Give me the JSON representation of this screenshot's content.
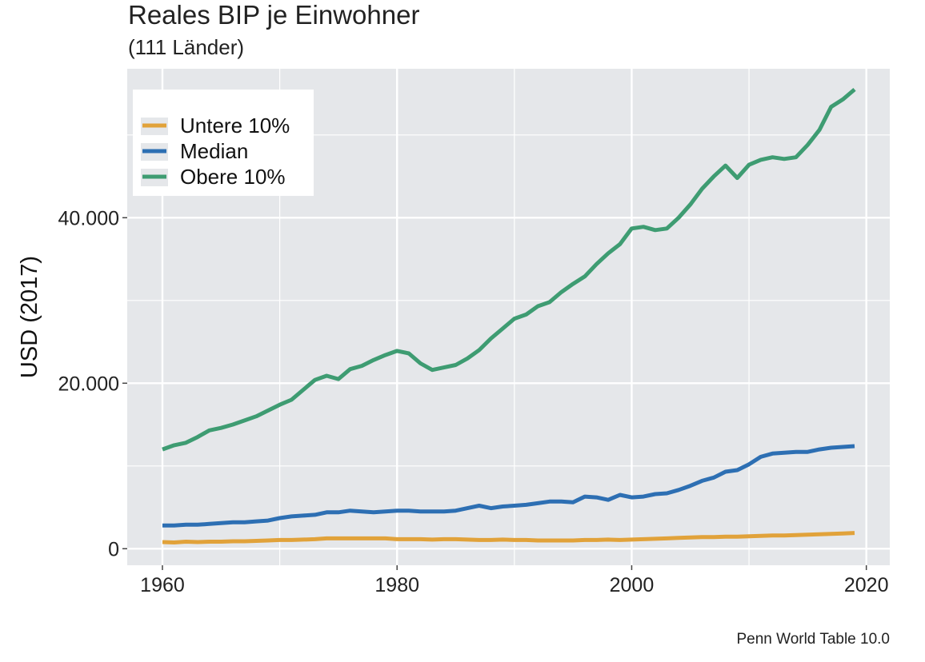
{
  "chart_data": {
    "type": "line",
    "title": "Reales BIP je Einwohner",
    "subtitle": "(111 Länder)",
    "xlabel": "",
    "ylabel": "USD (2017)",
    "caption": "Penn World Table 10.0",
    "xlim": [
      1957,
      2022
    ],
    "ylim": [
      -2000,
      58000
    ],
    "x_ticks": [
      1960,
      1980,
      2000,
      2020
    ],
    "y_ticks": [
      0,
      20000,
      40000
    ],
    "y_tick_labels": [
      "0",
      "20.000",
      "40.000"
    ],
    "grid": true,
    "legend_position": "top-left",
    "series": [
      {
        "name": "Untere 10%",
        "color": "#E1A23A",
        "x": [
          1960,
          1961,
          1962,
          1963,
          1964,
          1965,
          1966,
          1967,
          1968,
          1969,
          1970,
          1971,
          1972,
          1973,
          1974,
          1975,
          1976,
          1977,
          1978,
          1979,
          1980,
          1981,
          1982,
          1983,
          1984,
          1985,
          1986,
          1987,
          1988,
          1989,
          1990,
          1991,
          1992,
          1993,
          1994,
          1995,
          1996,
          1997,
          1998,
          1999,
          2000,
          2001,
          2002,
          2003,
          2004,
          2005,
          2006,
          2007,
          2008,
          2009,
          2010,
          2011,
          2012,
          2013,
          2014,
          2015,
          2016,
          2017,
          2018,
          2019
        ],
        "values": [
          800,
          750,
          850,
          800,
          850,
          850,
          900,
          900,
          950,
          1000,
          1050,
          1050,
          1100,
          1150,
          1250,
          1250,
          1250,
          1250,
          1250,
          1250,
          1150,
          1150,
          1150,
          1100,
          1150,
          1150,
          1100,
          1050,
          1050,
          1100,
          1050,
          1050,
          1000,
          1000,
          1000,
          1000,
          1050,
          1050,
          1100,
          1050,
          1100,
          1150,
          1200,
          1250,
          1300,
          1350,
          1400,
          1400,
          1450,
          1450,
          1500,
          1550,
          1600,
          1600,
          1650,
          1700,
          1750,
          1800,
          1850,
          1900
        ]
      },
      {
        "name": "Median",
        "color": "#2D6FB3",
        "x": [
          1960,
          1961,
          1962,
          1963,
          1964,
          1965,
          1966,
          1967,
          1968,
          1969,
          1970,
          1971,
          1972,
          1973,
          1974,
          1975,
          1976,
          1977,
          1978,
          1979,
          1980,
          1981,
          1982,
          1983,
          1984,
          1985,
          1986,
          1987,
          1988,
          1989,
          1990,
          1991,
          1992,
          1993,
          1994,
          1995,
          1996,
          1997,
          1998,
          1999,
          2000,
          2001,
          2002,
          2003,
          2004,
          2005,
          2006,
          2007,
          2008,
          2009,
          2010,
          2011,
          2012,
          2013,
          2014,
          2015,
          2016,
          2017,
          2018,
          2019
        ],
        "values": [
          2800,
          2800,
          2900,
          2900,
          3000,
          3100,
          3200,
          3200,
          3300,
          3400,
          3700,
          3900,
          4000,
          4100,
          4400,
          4400,
          4600,
          4500,
          4400,
          4500,
          4600,
          4600,
          4500,
          4500,
          4500,
          4600,
          4900,
          5200,
          4900,
          5100,
          5200,
          5300,
          5500,
          5700,
          5700,
          5600,
          6300,
          6200,
          5900,
          6500,
          6200,
          6300,
          6600,
          6700,
          7100,
          7600,
          8200,
          8600,
          9300,
          9500,
          10200,
          11100,
          11500,
          11600,
          11700,
          11700,
          12000,
          12200,
          12300,
          12400
        ]
      },
      {
        "name": "Obere 10%",
        "color": "#3E9C72",
        "x": [
          1960,
          1961,
          1962,
          1963,
          1964,
          1965,
          1966,
          1967,
          1968,
          1969,
          1970,
          1971,
          1972,
          1973,
          1974,
          1975,
          1976,
          1977,
          1978,
          1979,
          1980,
          1981,
          1982,
          1983,
          1984,
          1985,
          1986,
          1987,
          1988,
          1989,
          1990,
          1991,
          1992,
          1993,
          1994,
          1995,
          1996,
          1997,
          1998,
          1999,
          2000,
          2001,
          2002,
          2003,
          2004,
          2005,
          2006,
          2007,
          2008,
          2009,
          2010,
          2011,
          2012,
          2013,
          2014,
          2015,
          2016,
          2017,
          2018,
          2019
        ],
        "values": [
          12000,
          12500,
          12800,
          13500,
          14300,
          14600,
          15000,
          15500,
          16000,
          16700,
          17400,
          18000,
          19200,
          20400,
          20900,
          20500,
          21700,
          22100,
          22800,
          23400,
          23900,
          23600,
          22400,
          21600,
          21900,
          22200,
          23000,
          24000,
          25400,
          26600,
          27800,
          28300,
          29300,
          29800,
          31000,
          32000,
          32900,
          34400,
          35700,
          36800,
          38700,
          38900,
          38500,
          38700,
          40000,
          41600,
          43500,
          45000,
          46300,
          44800,
          46400,
          47000,
          47300,
          47100,
          47300,
          48800,
          50600,
          53400,
          54300,
          55500
        ]
      }
    ]
  }
}
